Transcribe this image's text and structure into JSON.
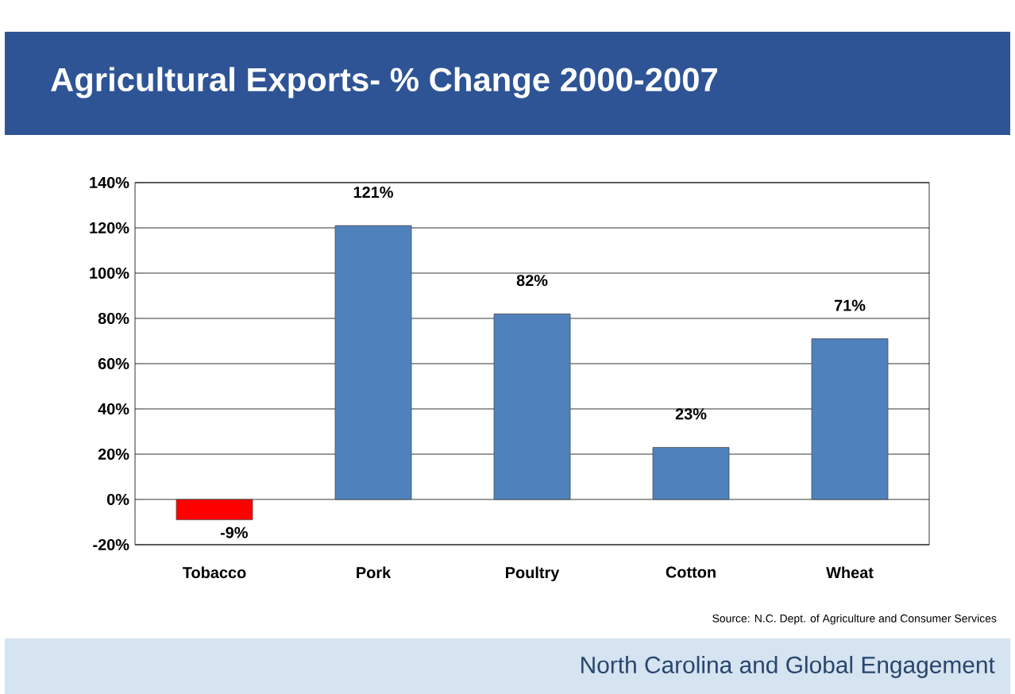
{
  "chart_data": {
    "type": "bar",
    "title": "Agricultural Exports- % Change 2000-2007",
    "categories": [
      "Tobacco",
      "Pork",
      "Poultry",
      "Cotton",
      "Wheat"
    ],
    "values": [
      -9,
      121,
      82,
      23,
      71
    ],
    "colors": [
      "#ff0000",
      "#4f81bd",
      "#4f81bd",
      "#4f81bd",
      "#4f81bd"
    ],
    "value_labels": [
      "-9%",
      "121%",
      "82%",
      "23%",
      "71%"
    ],
    "ylim": [
      -20,
      140
    ],
    "yticks": [
      {
        "value": -20,
        "label": "-20%"
      },
      {
        "value": 0,
        "label": "0%"
      },
      {
        "value": 20,
        "label": "20%"
      },
      {
        "value": 40,
        "label": "40%"
      },
      {
        "value": 60,
        "label": "60%"
      },
      {
        "value": 80,
        "label": "80%"
      },
      {
        "value": 100,
        "label": "100%"
      },
      {
        "value": 120,
        "label": "120%"
      },
      {
        "value": 140,
        "label": "140%"
      }
    ],
    "grid": "y",
    "annotations": [
      "Source: N.C. Dept. of Agriculture and Consumer Services",
      "North Carolina and Global Engagement"
    ]
  }
}
